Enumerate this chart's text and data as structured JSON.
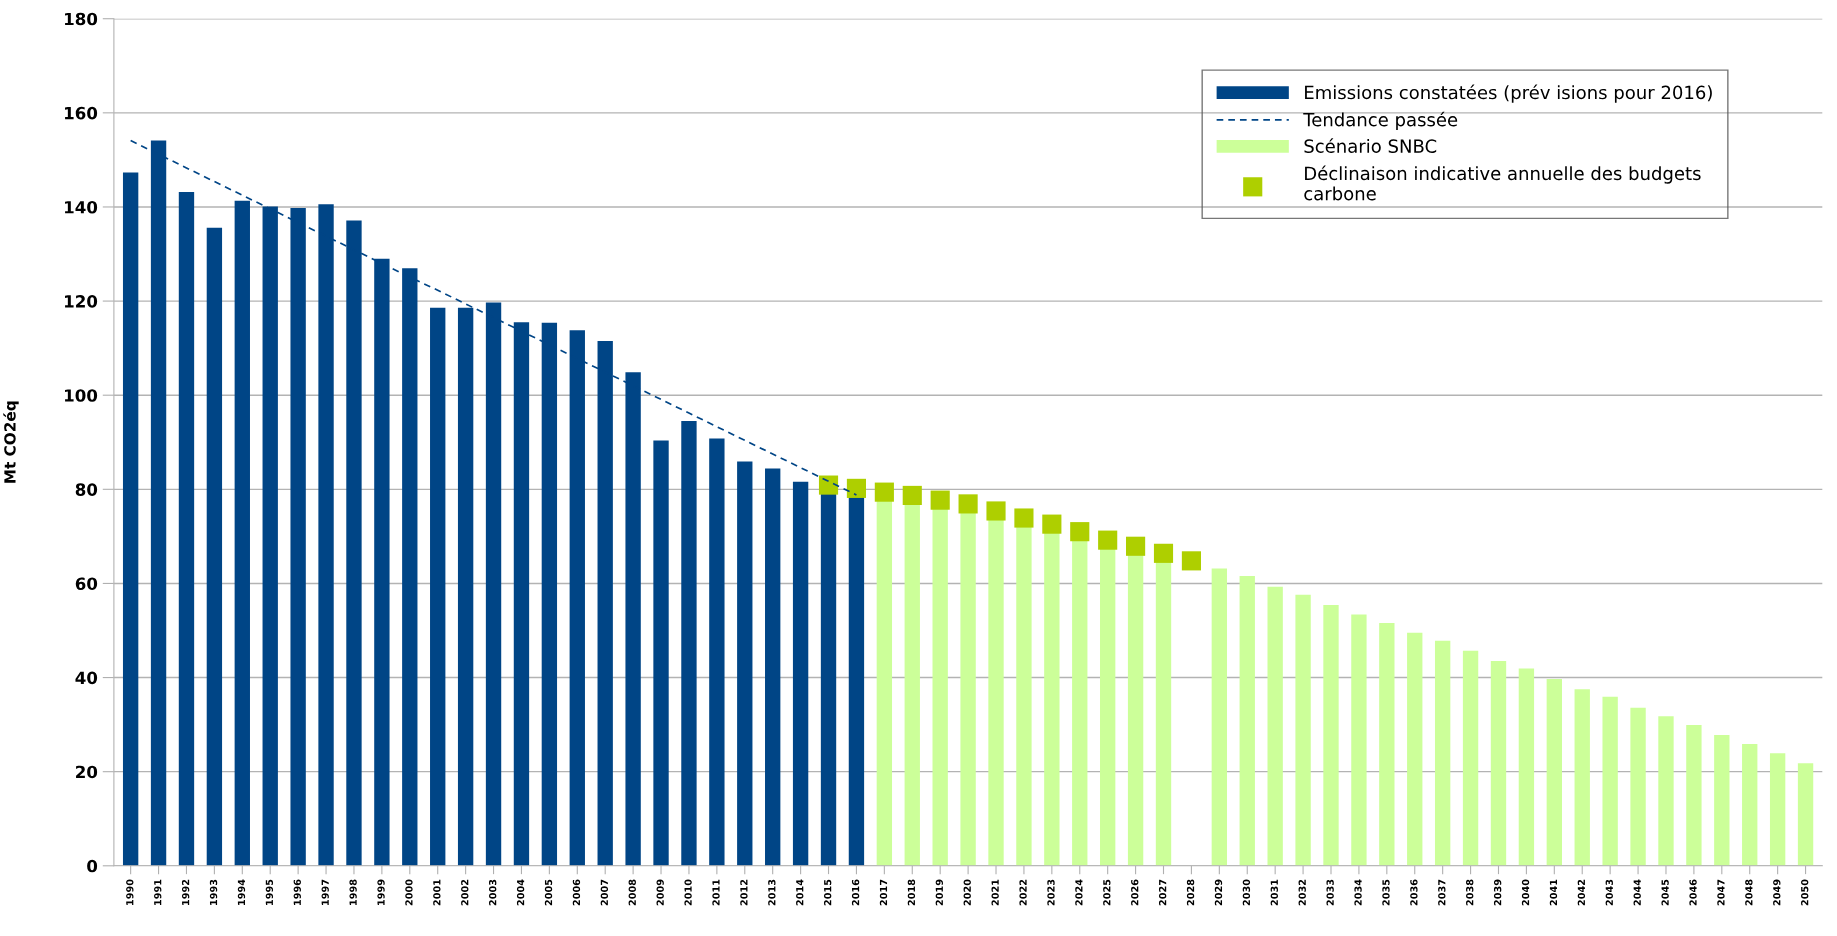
{
  "chart_data": {
    "type": "bar",
    "ylabel": "Mt CO2éq",
    "categories": [
      "1990",
      "1991",
      "1992",
      "1993",
      "1994",
      "1995",
      "1996",
      "1997",
      "1998",
      "1999",
      "2000",
      "2001",
      "2002",
      "2003",
      "2004",
      "2005",
      "2006",
      "2007",
      "2008",
      "2009",
      "2010",
      "2011",
      "2012",
      "2013",
      "2014",
      "2015",
      "2016",
      "2017",
      "2018",
      "2019",
      "2020",
      "2021",
      "2022",
      "2023",
      "2024",
      "2025",
      "2026",
      "2027",
      "2028",
      "2029",
      "2030",
      "2031",
      "2032",
      "2033",
      "2034",
      "2035",
      "2036",
      "2037",
      "2038",
      "2039",
      "2040",
      "2041",
      "2042",
      "2043",
      "2044",
      "2045",
      "2046",
      "2047",
      "2048",
      "2049",
      "2050"
    ],
    "series": [
      {
        "name": "Emissions constatées (prév isions pour 2016)",
        "color": "#004586",
        "values": [
          147.3,
          154.1,
          143.2,
          135.6,
          141.3,
          140.1,
          139.8,
          140.6,
          137.1,
          129.0,
          127.0,
          118.6,
          118.6,
          119.7,
          115.5,
          115.4,
          113.8,
          111.5,
          104.9,
          90.4,
          94.5,
          90.8,
          85.9,
          84.4,
          81.6,
          79.3,
          78.5,
          null,
          null,
          null,
          null,
          null,
          null,
          null,
          null,
          null,
          null,
          null,
          null,
          null,
          null,
          null,
          null,
          null,
          null,
          null,
          null,
          null,
          null,
          null,
          null,
          null,
          null,
          null,
          null,
          null,
          null,
          null,
          null,
          null,
          null
        ]
      },
      {
        "name": "Tendance passée",
        "type": "line",
        "line_style": "dashed",
        "color": "#004586",
        "values": [
          154.1,
          151.2,
          148.3,
          145.4,
          142.5,
          139.6,
          136.7,
          133.8,
          130.9,
          128.0,
          125.1,
          122.3,
          119.4,
          116.5,
          113.6,
          110.7,
          107.8,
          104.9,
          102.0,
          99.1,
          96.2,
          93.3,
          90.4,
          87.5,
          84.6,
          81.7,
          78.8,
          null,
          null,
          null,
          null,
          null,
          null,
          null,
          null,
          null,
          null,
          null,
          null,
          null,
          null,
          null,
          null,
          null,
          null,
          null,
          null,
          null,
          null,
          null,
          null,
          null,
          null,
          null,
          null,
          null,
          null,
          null,
          null,
          null,
          null
        ]
      },
      {
        "name": "Scénario SNBC",
        "color": "#ccff99",
        "values": [
          null,
          null,
          null,
          null,
          null,
          null,
          null,
          null,
          null,
          null,
          null,
          null,
          null,
          null,
          null,
          null,
          null,
          null,
          null,
          null,
          null,
          null,
          null,
          null,
          null,
          null,
          null,
          77.9,
          77.0,
          75.8,
          75.2,
          73.9,
          72.3,
          70.7,
          69.5,
          67.6,
          66.0,
          64.7,
          null,
          63.2,
          61.6,
          59.3,
          57.6,
          55.4,
          53.4,
          51.6,
          49.5,
          47.8,
          45.7,
          43.5,
          41.9,
          39.7,
          37.5,
          35.9,
          33.6,
          31.8,
          29.9,
          27.8,
          25.9,
          23.9,
          21.8
        ]
      },
      {
        "name": "Déclinaison indicative annuelle des budgets\ncarbone",
        "type": "scatter",
        "marker": "square",
        "color": "#aecf00",
        "values": [
          null,
          null,
          null,
          null,
          null,
          null,
          null,
          null,
          null,
          null,
          null,
          null,
          null,
          null,
          null,
          null,
          null,
          null,
          null,
          null,
          null,
          null,
          null,
          null,
          null,
          80.9,
          80.2,
          79.4,
          78.7,
          77.7,
          76.9,
          75.4,
          73.9,
          72.6,
          71.0,
          69.2,
          67.9,
          66.4,
          64.8,
          null,
          null,
          null,
          null,
          null,
          null,
          null,
          null,
          null,
          null,
          null,
          null,
          null,
          null,
          null,
          null,
          null,
          null,
          null,
          null,
          null,
          null
        ]
      }
    ],
    "ylim": [
      0,
      180
    ],
    "yticks": [
      0,
      20,
      40,
      60,
      80,
      100,
      120,
      140,
      160,
      180
    ],
    "grid": "y",
    "legend": "top right"
  }
}
